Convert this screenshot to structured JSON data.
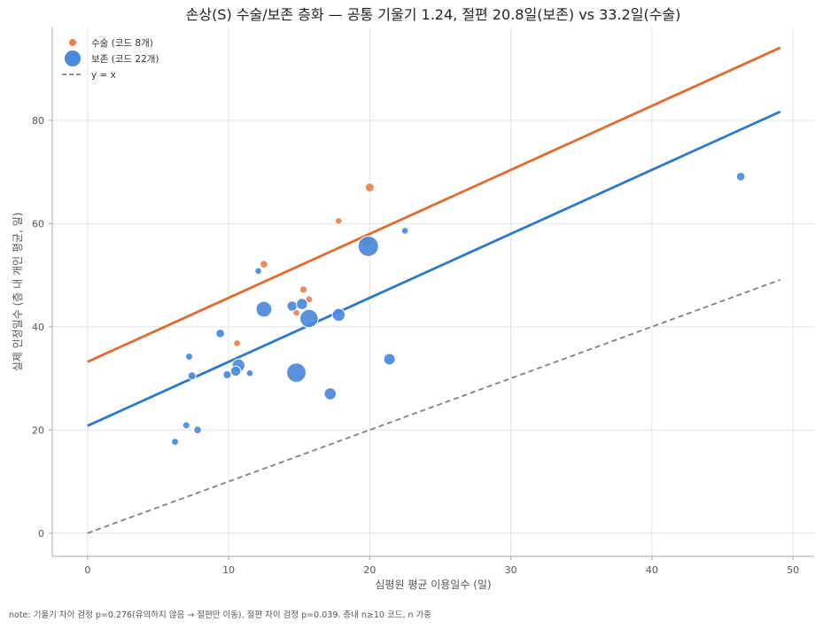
{
  "chart_data": {
    "type": "scatter",
    "title": "손상(S) 수술/보존 층화 — 공통 기울기 1.24, 절편 20.8일(보존) vs 33.2일(수술)",
    "xlabel": "심평원 평균 이용일수 (일)",
    "ylabel": "실제 인정일수 (층 내 개인 평균, 일)",
    "xlim": [
      -2.5,
      51.5
    ],
    "ylim": [
      -4.5,
      98
    ],
    "xticks": [
      0,
      10,
      20,
      30,
      40,
      50
    ],
    "yticks": [
      0,
      20,
      40,
      60,
      80
    ],
    "grid": true,
    "legend_position": "top-left",
    "legend": [
      {
        "label": "수술 (코드 8개)",
        "kind": "marker",
        "color": "#E8834E"
      },
      {
        "label": "보존 (코드 22개)",
        "kind": "marker",
        "color": "#4A89DC"
      },
      {
        "label": "y = x",
        "kind": "dashed-line",
        "color": "#808080"
      }
    ],
    "series": [
      {
        "name": "수술 (코드 8개)",
        "color": "#E8834E",
        "points": [
          {
            "x": 12.5,
            "y": 52.1,
            "n": 14
          },
          {
            "x": 10.6,
            "y": 36.8,
            "n": 11
          },
          {
            "x": 15.3,
            "y": 47.2,
            "n": 13
          },
          {
            "x": 15.7,
            "y": 45.3,
            "n": 12
          },
          {
            "x": 14.8,
            "y": 42.7,
            "n": 11
          },
          {
            "x": 17.8,
            "y": 60.5,
            "n": 11
          },
          {
            "x": 20.0,
            "y": 67.0,
            "n": 19
          },
          {
            "x": 19.8,
            "y": 56.5,
            "n": 25
          }
        ]
      },
      {
        "name": "보존 (코드 22개)",
        "color": "#4A89DC",
        "points": [
          {
            "x": 6.2,
            "y": 17.7,
            "n": 12
          },
          {
            "x": 7.0,
            "y": 20.9,
            "n": 12
          },
          {
            "x": 7.8,
            "y": 20.0,
            "n": 14
          },
          {
            "x": 7.2,
            "y": 34.2,
            "n": 12
          },
          {
            "x": 7.4,
            "y": 30.5,
            "n": 15
          },
          {
            "x": 9.4,
            "y": 38.7,
            "n": 18
          },
          {
            "x": 9.9,
            "y": 30.7,
            "n": 16
          },
          {
            "x": 10.7,
            "y": 32.5,
            "n": 40
          },
          {
            "x": 10.5,
            "y": 31.4,
            "n": 25
          },
          {
            "x": 11.5,
            "y": 31.0,
            "n": 11
          },
          {
            "x": 12.1,
            "y": 50.8,
            "n": 11
          },
          {
            "x": 12.5,
            "y": 43.4,
            "n": 60
          },
          {
            "x": 14.5,
            "y": 44.0,
            "n": 25
          },
          {
            "x": 15.2,
            "y": 44.4,
            "n": 30
          },
          {
            "x": 14.8,
            "y": 31.1,
            "n": 90
          },
          {
            "x": 15.7,
            "y": 41.6,
            "n": 80
          },
          {
            "x": 17.2,
            "y": 27.0,
            "n": 35
          },
          {
            "x": 17.8,
            "y": 42.3,
            "n": 40
          },
          {
            "x": 19.9,
            "y": 55.6,
            "n": 100
          },
          {
            "x": 21.4,
            "y": 33.7,
            "n": 32
          },
          {
            "x": 22.5,
            "y": 58.6,
            "n": 11
          },
          {
            "x": 46.3,
            "y": 69.1,
            "n": 18
          }
        ]
      }
    ],
    "fit_lines": [
      {
        "name": "수술",
        "color": "#E06A30",
        "slope": 1.24,
        "intercept": 33.2,
        "x_range": [
          0,
          49.1
        ]
      },
      {
        "name": "보존",
        "color": "#2C78C8",
        "slope": 1.24,
        "intercept": 20.8,
        "x_range": [
          0,
          49.1
        ]
      }
    ],
    "reference_line": {
      "name": "y = x",
      "color": "#808080",
      "x_range": [
        0,
        49.1
      ]
    },
    "note": "note: 기울기 차이 검정 p=0.276(유의하지 않음 → 절편만 이동), 절편 차이 검정 p=0.039. 층내 n≥10 코드, n 가중"
  }
}
